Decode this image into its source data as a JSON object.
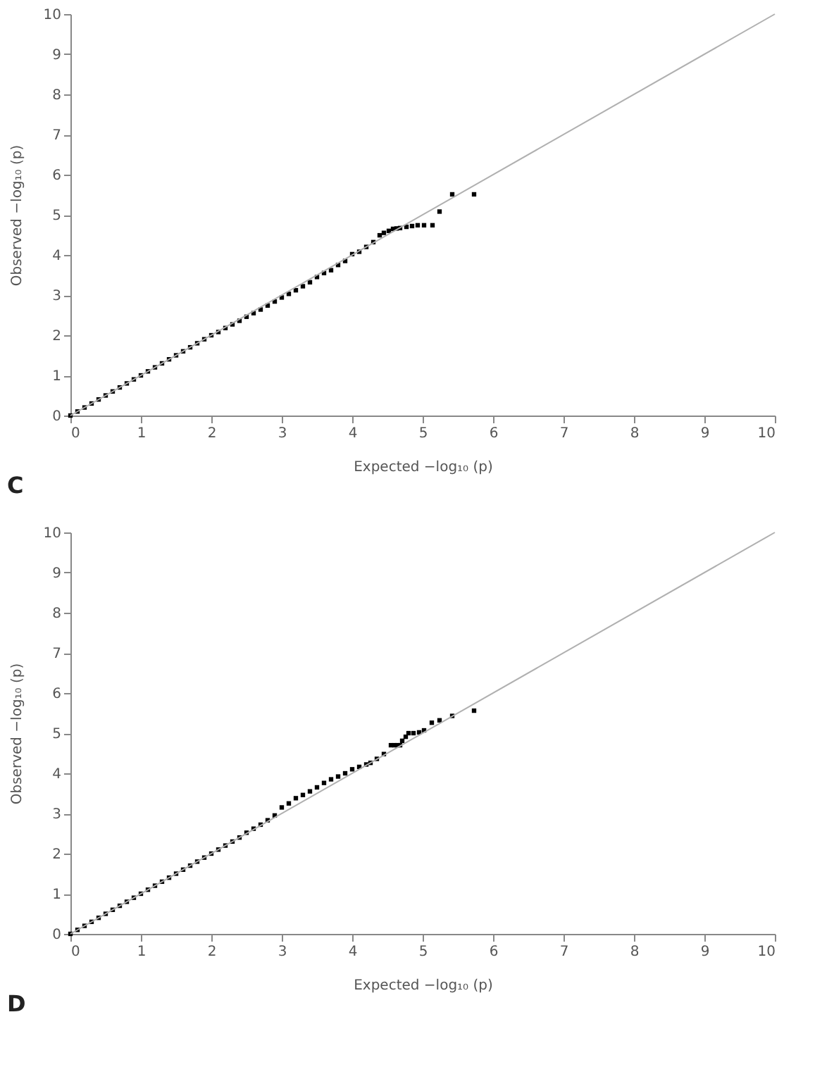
{
  "chart_data": [
    {
      "type": "scatter",
      "xlabel": "Expected −log₁₀ (p)",
      "ylabel": "Observed −log₁₀ (p)",
      "xlim": [
        0,
        10
      ],
      "ylim": [
        0,
        10
      ],
      "xticks": [
        0,
        1,
        2,
        3,
        4,
        5,
        6,
        7,
        8,
        9,
        10
      ],
      "yticks": [
        0,
        1,
        2,
        3,
        4,
        5,
        6,
        7,
        8,
        9,
        10
      ],
      "grid": false,
      "annotations": [
        "C"
      ],
      "series": [
        {
          "marker": "square",
          "color": "#000000",
          "x": [
            0,
            0.1,
            0.2,
            0.3,
            0.4,
            0.5,
            0.6,
            0.7,
            0.8,
            0.9,
            1.0,
            1.1,
            1.2,
            1.3,
            1.4,
            1.5,
            1.6,
            1.7,
            1.8,
            1.9,
            2.0,
            2.1,
            2.2,
            2.3,
            2.4,
            2.5,
            2.6,
            2.7,
            2.8,
            2.9,
            3.0,
            3.1,
            3.2,
            3.3,
            3.4,
            3.5,
            3.6,
            3.7,
            3.8,
            3.9,
            4.0,
            4.1,
            4.2,
            4.3,
            4.39,
            4.45,
            4.52,
            4.58,
            4.63,
            4.68,
            4.77,
            4.85,
            4.93,
            5.02,
            5.14,
            5.24,
            5.42,
            5.73
          ],
          "values": [
            0,
            0.1,
            0.2,
            0.3,
            0.4,
            0.5,
            0.6,
            0.7,
            0.8,
            0.9,
            1.0,
            1.1,
            1.2,
            1.3,
            1.4,
            1.5,
            1.6,
            1.7,
            1.8,
            1.9,
            2.0,
            2.08,
            2.18,
            2.27,
            2.36,
            2.46,
            2.55,
            2.64,
            2.74,
            2.84,
            2.94,
            3.03,
            3.12,
            3.22,
            3.32,
            3.45,
            3.55,
            3.62,
            3.75,
            3.85,
            4.02,
            4.08,
            4.2,
            4.32,
            4.49,
            4.55,
            4.6,
            4.65,
            4.66,
            4.67,
            4.7,
            4.72,
            4.74,
            4.74,
            4.74,
            5.08,
            5.51,
            5.51
          ]
        },
        {
          "type": "line",
          "marker": "none",
          "color": "#b0b0b0",
          "line_style": "solid",
          "x": [
            0,
            10
          ],
          "values": [
            0,
            10
          ]
        }
      ]
    },
    {
      "type": "scatter",
      "xlabel": "Expected −log₁₀ (p)",
      "ylabel": "Observed −log₁₀ (p)",
      "xlim": [
        0,
        10
      ],
      "ylim": [
        0,
        10
      ],
      "xticks": [
        0,
        1,
        2,
        3,
        4,
        5,
        6,
        7,
        8,
        9,
        10
      ],
      "yticks": [
        0,
        1,
        2,
        3,
        4,
        5,
        6,
        7,
        8,
        9,
        10
      ],
      "grid": false,
      "annotations": [
        "D"
      ],
      "series": [
        {
          "marker": "square",
          "color": "#000000",
          "x": [
            0,
            0.1,
            0.2,
            0.3,
            0.4,
            0.5,
            0.6,
            0.7,
            0.8,
            0.9,
            1.0,
            1.1,
            1.2,
            1.3,
            1.4,
            1.5,
            1.6,
            1.7,
            1.8,
            1.9,
            2.0,
            2.1,
            2.2,
            2.3,
            2.4,
            2.5,
            2.6,
            2.7,
            2.8,
            2.9,
            3.0,
            3.1,
            3.2,
            3.3,
            3.4,
            3.5,
            3.6,
            3.7,
            3.8,
            3.9,
            4.0,
            4.1,
            4.2,
            4.26,
            4.35,
            4.45,
            4.55,
            4.6,
            4.64,
            4.68,
            4.71,
            4.76,
            4.8,
            4.87,
            4.95,
            5.02,
            5.13,
            5.24,
            5.42,
            5.73
          ],
          "values": [
            0,
            0.1,
            0.2,
            0.3,
            0.4,
            0.5,
            0.6,
            0.7,
            0.8,
            0.9,
            1.0,
            1.1,
            1.2,
            1.3,
            1.4,
            1.5,
            1.6,
            1.7,
            1.8,
            1.9,
            2.0,
            2.1,
            2.2,
            2.3,
            2.4,
            2.52,
            2.62,
            2.72,
            2.83,
            2.95,
            3.15,
            3.25,
            3.38,
            3.46,
            3.55,
            3.65,
            3.76,
            3.85,
            3.92,
            4.0,
            4.1,
            4.16,
            4.22,
            4.26,
            4.36,
            4.48,
            4.7,
            4.7,
            4.7,
            4.7,
            4.81,
            4.91,
            5.0,
            5.0,
            5.02,
            5.07,
            5.26,
            5.32,
            5.43,
            5.56
          ]
        },
        {
          "type": "line",
          "marker": "none",
          "color": "#b0b0b0",
          "line_style": "solid",
          "x": [
            0,
            10
          ],
          "values": [
            0,
            10
          ]
        }
      ]
    }
  ]
}
